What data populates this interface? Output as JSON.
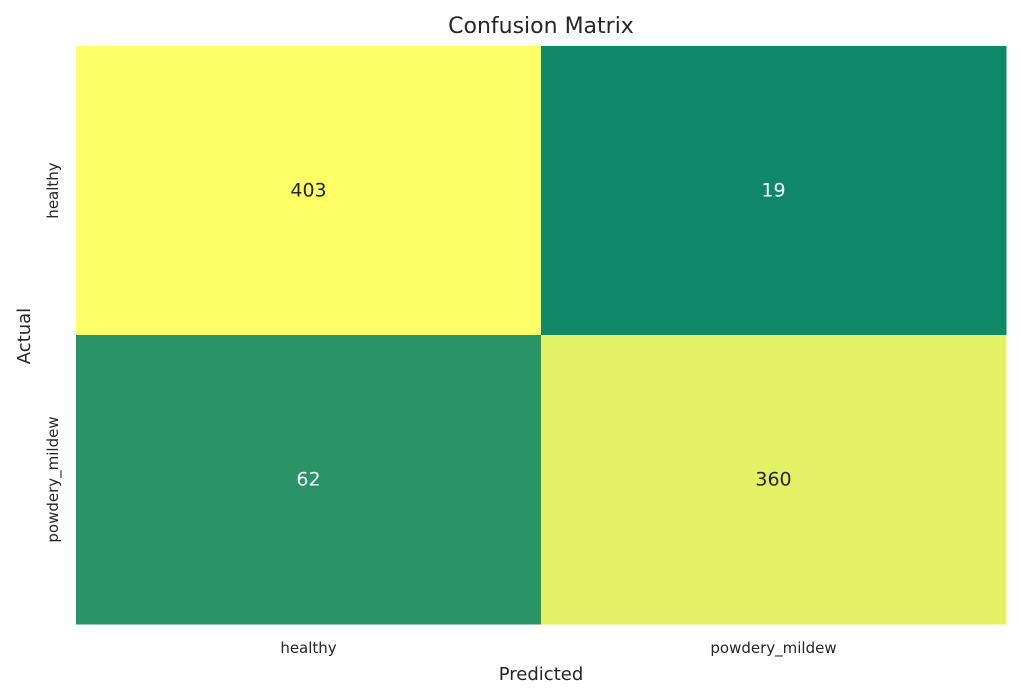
{
  "chart_data": {
    "type": "heatmap",
    "title": "Confusion Matrix",
    "xlabel": "Predicted",
    "ylabel": "Actual",
    "x_categories": [
      "healthy",
      "powdery_mildew"
    ],
    "y_categories": [
      "healthy",
      "powdery_mildew"
    ],
    "values": [
      [
        403,
        19
      ],
      [
        62,
        360
      ]
    ],
    "colormap": "summer",
    "colorbar": false,
    "grid": false,
    "cell_colors": [
      [
        "#ffff66",
        "#0e8868"
      ],
      [
        "#2a9367",
        "#e3f166"
      ]
    ],
    "annotation_colors": {
      "light_cells": "#262626",
      "dark_cells": "#ffffff"
    }
  }
}
